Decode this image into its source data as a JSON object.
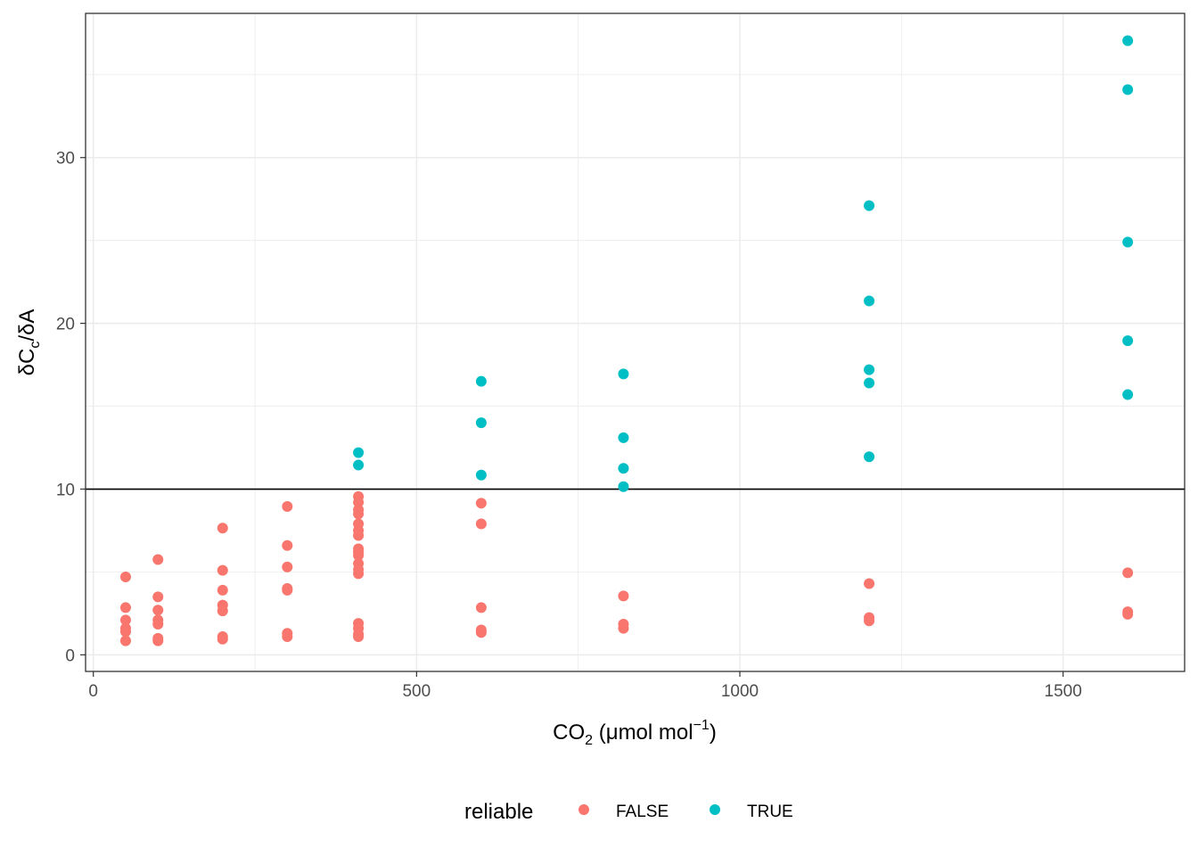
{
  "chart_data": {
    "type": "scatter",
    "title": "",
    "xlabel": {
      "main": "CO",
      "sub": "2",
      "after": " (μmol mol",
      "sup": "−1",
      "end": ")"
    },
    "ylabel": {
      "d1": "δC",
      "sub": "c",
      "rest": "/δA"
    },
    "xlim": [
      -12,
      1688
    ],
    "ylim": [
      -1,
      38.7
    ],
    "x_ticks": [
      0,
      500,
      1000,
      1500
    ],
    "y_ticks": [
      0,
      10,
      20,
      30
    ],
    "x_tick_labels": [
      "0",
      "500",
      "1000",
      "1500"
    ],
    "y_tick_labels": [
      "0",
      "10",
      "20",
      "30"
    ],
    "grid": true,
    "hline": 10,
    "legend": {
      "title": "reliable",
      "position": "bottom"
    },
    "series": [
      {
        "name": "FALSE",
        "color": "#F8766D",
        "points": [
          [
            50,
            4.7
          ],
          [
            50,
            2.85
          ],
          [
            50,
            2.1
          ],
          [
            50,
            1.6
          ],
          [
            50,
            1.4
          ],
          [
            50,
            0.85
          ],
          [
            100,
            5.75
          ],
          [
            100,
            3.5
          ],
          [
            100,
            2.7
          ],
          [
            100,
            2.1
          ],
          [
            100,
            1.85
          ],
          [
            100,
            1.0
          ],
          [
            100,
            0.85
          ],
          [
            200,
            7.65
          ],
          [
            200,
            5.1
          ],
          [
            200,
            3.9
          ],
          [
            200,
            3.0
          ],
          [
            200,
            2.65
          ],
          [
            200,
            1.1
          ],
          [
            200,
            0.95
          ],
          [
            300,
            8.95
          ],
          [
            300,
            6.6
          ],
          [
            300,
            5.3
          ],
          [
            300,
            4.0
          ],
          [
            300,
            3.9
          ],
          [
            300,
            1.3
          ],
          [
            300,
            1.1
          ],
          [
            410,
            9.55
          ],
          [
            410,
            9.2
          ],
          [
            410,
            8.75
          ],
          [
            410,
            8.5
          ],
          [
            410,
            7.9
          ],
          [
            410,
            7.5
          ],
          [
            410,
            7.2
          ],
          [
            410,
            6.4
          ],
          [
            410,
            6.2
          ],
          [
            410,
            6.0
          ],
          [
            410,
            5.5
          ],
          [
            410,
            5.15
          ],
          [
            410,
            4.9
          ],
          [
            410,
            1.9
          ],
          [
            410,
            1.6
          ],
          [
            410,
            1.25
          ],
          [
            410,
            1.1
          ],
          [
            600,
            9.15
          ],
          [
            600,
            7.9
          ],
          [
            600,
            2.85
          ],
          [
            600,
            1.5
          ],
          [
            600,
            1.35
          ],
          [
            820,
            3.55
          ],
          [
            820,
            1.85
          ],
          [
            820,
            1.6
          ],
          [
            1200,
            4.3
          ],
          [
            1200,
            2.25
          ],
          [
            1200,
            2.05
          ],
          [
            1600,
            4.95
          ],
          [
            1600,
            2.6
          ],
          [
            1600,
            2.45
          ]
        ]
      },
      {
        "name": "TRUE",
        "color": "#00BFC4",
        "points": [
          [
            410,
            12.2
          ],
          [
            410,
            11.45
          ],
          [
            600,
            16.5
          ],
          [
            600,
            14.0
          ],
          [
            600,
            10.85
          ],
          [
            820,
            16.95
          ],
          [
            820,
            13.1
          ],
          [
            820,
            11.25
          ],
          [
            820,
            10.15
          ],
          [
            1200,
            27.1
          ],
          [
            1200,
            21.35
          ],
          [
            1200,
            17.2
          ],
          [
            1200,
            16.4
          ],
          [
            1200,
            11.95
          ],
          [
            1600,
            37.05
          ],
          [
            1600,
            34.1
          ],
          [
            1600,
            24.9
          ],
          [
            1600,
            18.95
          ],
          [
            1600,
            15.7
          ]
        ]
      }
    ]
  }
}
